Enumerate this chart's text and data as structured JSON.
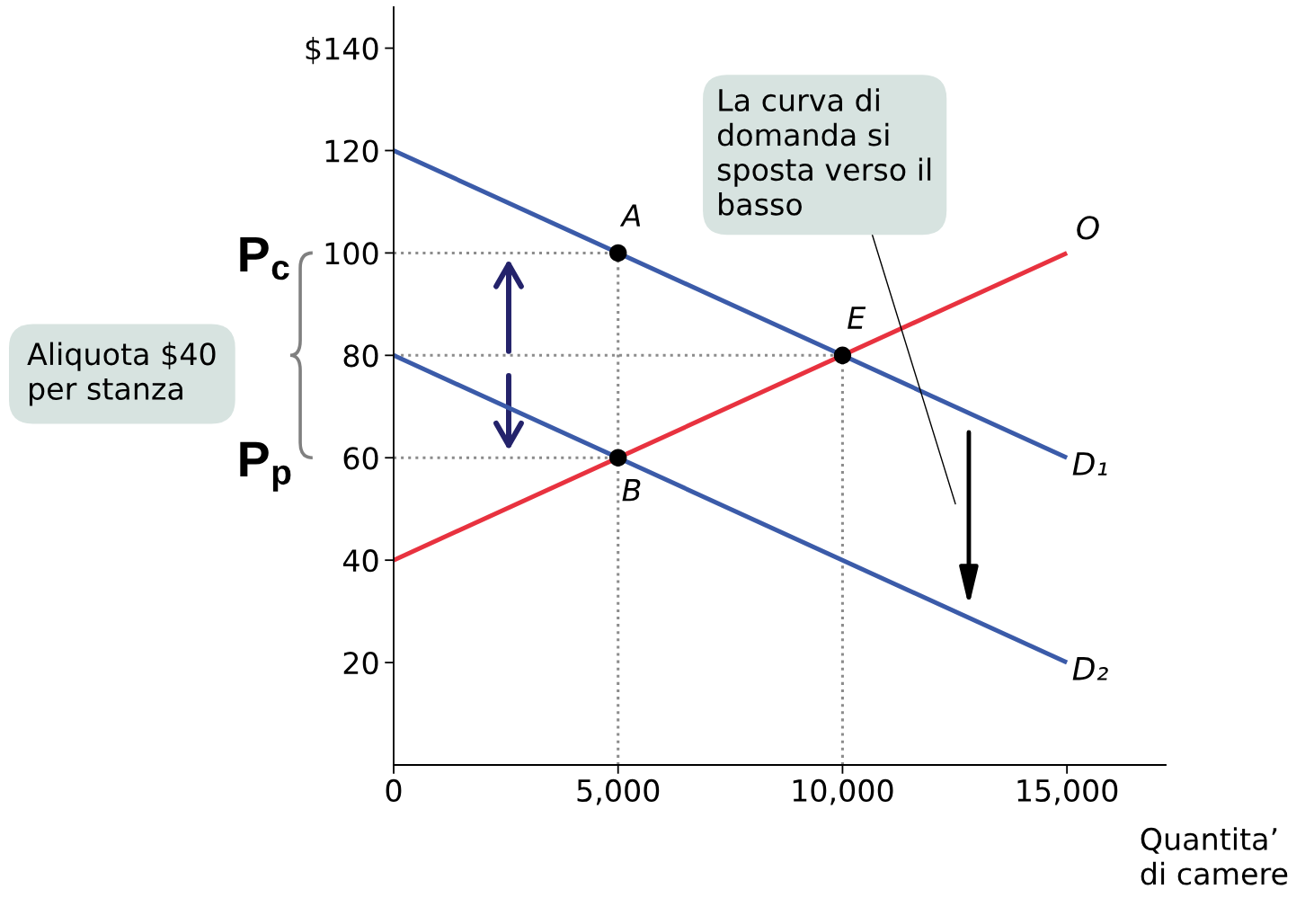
{
  "chart_data": {
    "type": "line",
    "xlabel": "Quantita’\ndi camere",
    "xlim": [
      0,
      17200
    ],
    "xticks": [
      {
        "value": 0,
        "label": "0"
      },
      {
        "value": 5000,
        "label": "5,000"
      },
      {
        "value": 10000,
        "label": "10,000"
      },
      {
        "value": 15000,
        "label": "15,000"
      }
    ],
    "ylim": [
      0,
      148
    ],
    "yticks": [
      20,
      40,
      60,
      80,
      100,
      120,
      {
        "value": 140,
        "label": "$140"
      }
    ],
    "series": [
      {
        "x": [
          0,
          5000
        ],
        "values": [
          100,
          100
        ],
        "color": "#8c8c8c",
        "line_style": "dotted"
      },
      {
        "x": [
          0,
          10000
        ],
        "values": [
          80,
          80
        ],
        "color": "#8c8c8c",
        "line_style": "dotted"
      },
      {
        "x": [
          0,
          5000
        ],
        "values": [
          60,
          60
        ],
        "color": "#8c8c8c",
        "line_style": "dotted"
      },
      {
        "x": [
          5000,
          5000
        ],
        "values": [
          0,
          100
        ],
        "color": "#8c8c8c",
        "line_style": "dotted"
      },
      {
        "x": [
          10000,
          10000
        ],
        "values": [
          0,
          80
        ],
        "color": "#8c8c8c",
        "line_style": "dotted"
      },
      {
        "name": "D₁",
        "x": [
          0,
          15000
        ],
        "values": [
          120,
          60
        ],
        "color": "#3b5ba9"
      },
      {
        "name": "D₂",
        "x": [
          0,
          15000
        ],
        "values": [
          80,
          20
        ],
        "color": "#3b5ba9"
      },
      {
        "name": "O",
        "x": [
          0,
          15000
        ],
        "values": [
          40,
          100
        ],
        "color": "#e8323f"
      },
      {
        "type": "scatter",
        "x": [
          5000,
          5000,
          10000
        ],
        "values": [
          100,
          60,
          80
        ],
        "value_labels": [
          "A",
          "B",
          "E"
        ],
        "color": "#000000",
        "marker": "circle"
      }
    ],
    "annotations": [
      "P$_{c}$",
      "P$_{p}$",
      "La curva di\ndomanda si\nsposta verso il\nbasso",
      "Aliquota $40\nper stanza"
    ]
  }
}
